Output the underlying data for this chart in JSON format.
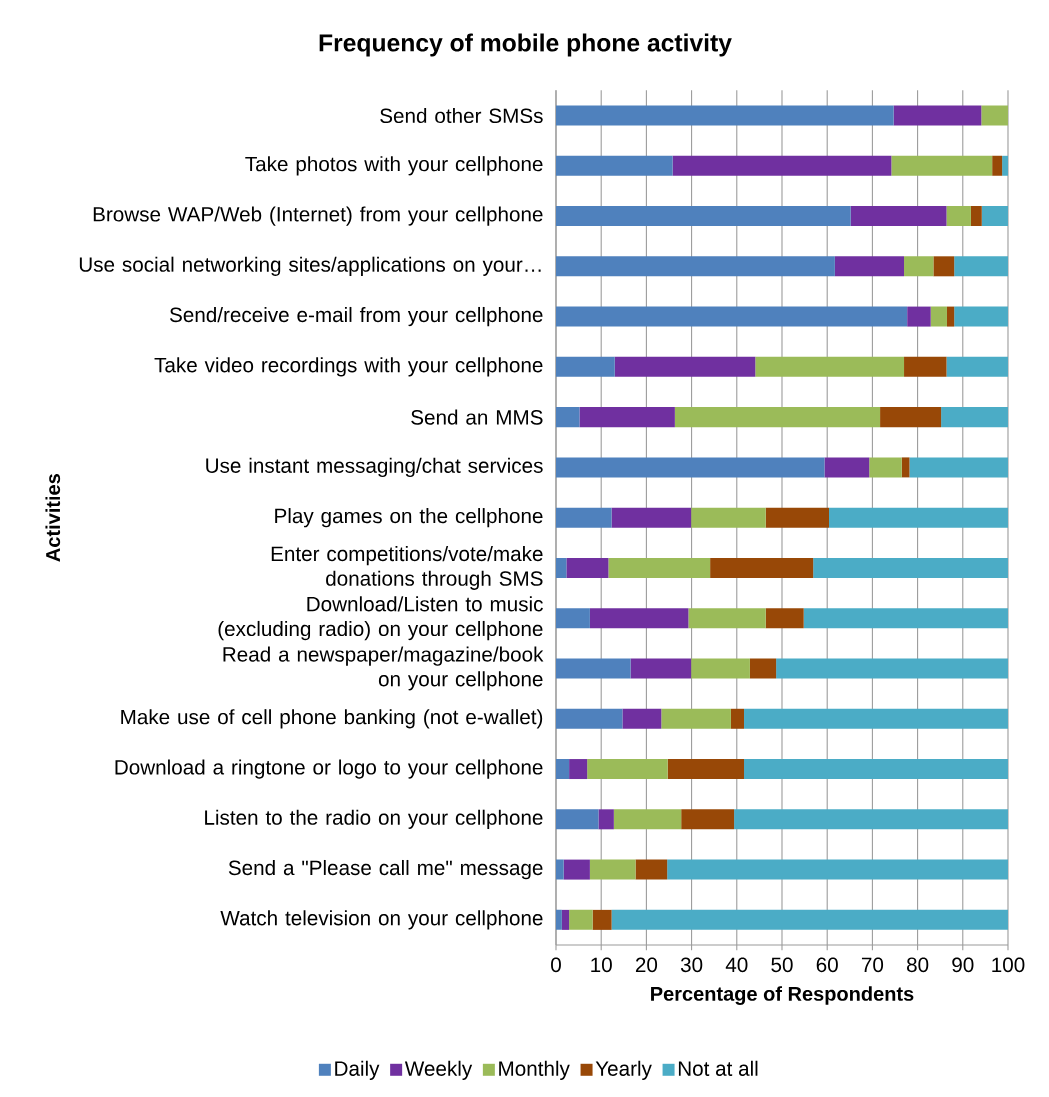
{
  "chart_data": {
    "type": "bar",
    "orientation": "horizontal",
    "stacked": true,
    "title": "Frequency of mobile phone activity",
    "xlabel": "Percentage of Respondents",
    "ylabel": "Activities",
    "categories": [
      "Send other SMSs",
      "Take photos with your cellphone",
      "Browse WAP/Web (Internet) from your cellphone",
      "Use social networking sites/applications on your…",
      "Send/receive e-mail from your cellphone",
      "Take video recordings with your cellphone",
      "Send an MMS",
      "Use instant messaging/chat services",
      "Play games on the cellphone",
      "Enter competitions/vote/make donations through SMS",
      "Download/Listen to music (excluding radio) on your cellphone",
      "Read a newspaper/magazine/book on your cellphone",
      "Make use of cell phone banking (not e-wallet)",
      "Download a ringtone or logo to your cellphone",
      "Listen to the radio on your cellphone",
      "Send a \"Please call me\" message",
      "Watch television on your cellphone"
    ],
    "series": [
      {
        "name": "Daily",
        "color": "#4f81bd",
        "values": [
          74.7,
          25.8,
          65.2,
          61.7,
          77.7,
          13.0,
          5.2,
          59.4,
          12.3,
          2.3,
          7.5,
          16.5,
          14.7,
          2.9,
          9.4,
          1.7,
          1.3
        ]
      },
      {
        "name": "Weekly",
        "color": "#7030a0",
        "values": [
          19.4,
          48.4,
          21.2,
          15.3,
          5.2,
          31.1,
          21.1,
          9.9,
          17.6,
          9.3,
          21.8,
          13.4,
          8.6,
          4.0,
          3.4,
          5.8,
          1.6
        ]
      },
      {
        "name": "Monthly",
        "color": "#9bbb59",
        "values": [
          5.9,
          22.3,
          5.4,
          6.5,
          3.6,
          32.9,
          45.4,
          7.2,
          16.5,
          22.5,
          17.1,
          13.0,
          15.4,
          17.8,
          14.9,
          10.1,
          5.2
        ]
      },
      {
        "name": "Yearly",
        "color": "#984807",
        "values": [
          0,
          2.2,
          2.4,
          4.6,
          1.6,
          9.4,
          13.5,
          1.7,
          14.0,
          22.8,
          8.4,
          5.8,
          2.9,
          16.9,
          11.7,
          7.0,
          4.2
        ]
      },
      {
        "name": "Not at all",
        "color": "#4bacc6",
        "values": [
          0,
          1.3,
          5.8,
          11.9,
          11.9,
          13.6,
          14.8,
          21.8,
          39.6,
          43.1,
          45.2,
          51.3,
          58.4,
          58.4,
          60.6,
          75.4,
          87.7
        ]
      }
    ],
    "xlim": [
      0,
      100
    ],
    "xticks": [
      0,
      10,
      20,
      30,
      40,
      50,
      60,
      70,
      80,
      90,
      100
    ],
    "grid": "x",
    "legend": "bottom"
  }
}
